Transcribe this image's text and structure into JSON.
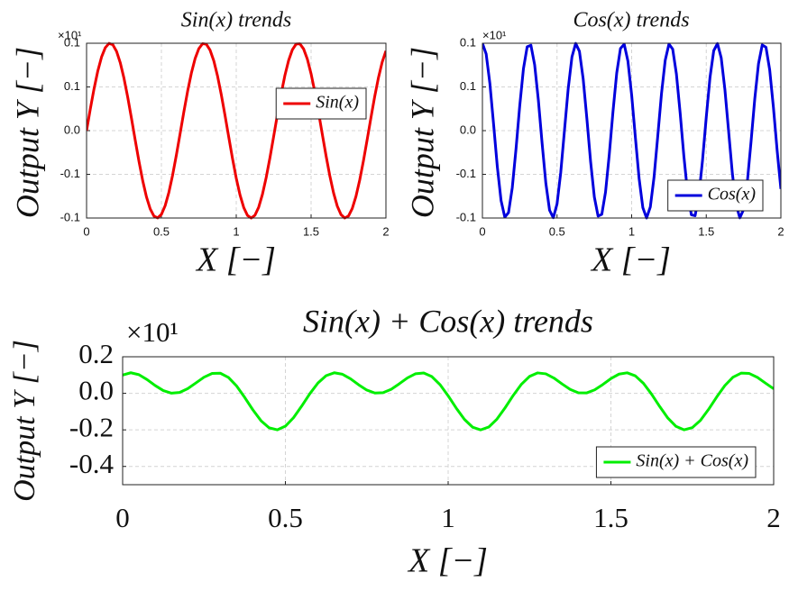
{
  "chart_data": [
    {
      "type": "line",
      "title": "Sin(x) trends",
      "x_label": "X [−]",
      "y_label": "Output Y [−]",
      "y_exponent": "×10¹",
      "x": [
        0,
        0.025,
        0.05,
        0.075,
        0.1,
        0.125,
        0.15,
        0.175,
        0.2,
        0.225,
        0.25,
        0.275,
        0.3,
        0.325,
        0.35,
        0.375,
        0.4,
        0.425,
        0.45,
        0.475,
        0.5,
        0.525,
        0.55,
        0.575,
        0.6,
        0.625,
        0.65,
        0.675,
        0.7,
        0.725,
        0.75,
        0.775,
        0.8,
        0.825,
        0.85,
        0.875,
        0.9,
        0.925,
        0.95,
        0.975,
        1,
        1.025,
        1.05,
        1.075,
        1.1,
        1.125,
        1.15,
        1.175,
        1.2,
        1.225,
        1.25,
        1.275,
        1.3,
        1.325,
        1.35,
        1.375,
        1.4,
        1.425,
        1.45,
        1.475,
        1.5,
        1.525,
        1.55,
        1.575,
        1.6,
        1.625,
        1.65,
        1.675,
        1.7,
        1.725,
        1.75,
        1.775,
        1.8,
        1.825,
        1.85,
        1.875,
        1.9,
        1.925,
        1.95,
        1.975,
        2
      ],
      "series": [
        {
          "name": "Sin(x)",
          "color": "#ee0000",
          "values": [
            0,
            0.0247,
            0.0479,
            0.0682,
            0.0842,
            0.0949,
            0.0998,
            0.0984,
            0.0909,
            0.0778,
            0.0599,
            0.0382,
            0.0141,
            -0.0108,
            -0.0351,
            -0.0572,
            -0.0757,
            -0.0895,
            -0.0978,
            -0.0999,
            -0.0959,
            -0.0859,
            -0.0706,
            -0.0508,
            -0.0279,
            -0.0033,
            0.0215,
            0.045,
            0.0657,
            0.0824,
            0.0938,
            0.0995,
            0.0989,
            0.0922,
            0.0799,
            0.0625,
            0.0412,
            0.0174,
            -0.0075,
            -0.032,
            -0.0544,
            -0.0735,
            -0.088,
            -0.097,
            -0.1,
            -0.0968,
            -0.0876,
            -0.0729,
            -0.0537,
            -0.0311,
            -0.0066,
            0.0183,
            0.042,
            0.0632,
            0.0804,
            0.0926,
            0.0991,
            0.0994,
            0.0935,
            0.0818,
            0.065,
            0.0442,
            0.0207,
            -0.0042,
            -0.0288,
            -0.0516,
            -0.0712,
            -0.0864,
            -0.0961,
            -0.1,
            -0.0976,
            -0.0891,
            -0.0751,
            -0.0564,
            -0.0343,
            -0.0099,
            0.015,
            0.039,
            0.0606,
            0.0784,
            0.0913
          ]
        }
      ],
      "xlim": [
        0,
        2
      ],
      "xticks": [
        0,
        0.5,
        1,
        1.5,
        2
      ],
      "ylim": [
        -0.1,
        0.1
      ],
      "yticks": [
        -0.1,
        {
          "value": -0.05,
          "label": "-0.1"
        },
        {
          "value": 0,
          "label": "0.0"
        },
        {
          "value": 0.05,
          "label": "0.1"
        },
        0.1
      ],
      "grid": true,
      "legend": "east"
    },
    {
      "type": "line",
      "title": "Cos(x) trends",
      "x_label": "X [−]",
      "y_label": "Output Y [−]",
      "y_exponent": "×10¹",
      "x": [
        0,
        0.025,
        0.05,
        0.075,
        0.1,
        0.125,
        0.15,
        0.175,
        0.2,
        0.225,
        0.25,
        0.275,
        0.3,
        0.325,
        0.35,
        0.375,
        0.4,
        0.425,
        0.45,
        0.475,
        0.5,
        0.525,
        0.55,
        0.575,
        0.6,
        0.625,
        0.65,
        0.675,
        0.7,
        0.725,
        0.75,
        0.775,
        0.8,
        0.825,
        0.85,
        0.875,
        0.9,
        0.925,
        0.95,
        0.975,
        1,
        1.025,
        1.05,
        1.075,
        1.1,
        1.125,
        1.15,
        1.175,
        1.2,
        1.225,
        1.25,
        1.275,
        1.3,
        1.325,
        1.35,
        1.375,
        1.4,
        1.425,
        1.45,
        1.475,
        1.5,
        1.525,
        1.55,
        1.575,
        1.6,
        1.625,
        1.65,
        1.675,
        1.7,
        1.725,
        1.75,
        1.775,
        1.8,
        1.825,
        1.85,
        1.875,
        1.9,
        1.925,
        1.95,
        1.975,
        2
      ],
      "series": [
        {
          "name": "Cos(x)",
          "color": "#0000dd",
          "values": [
            0.1,
            0.0878,
            0.054,
            0.0071,
            -0.0416,
            -0.0801,
            -0.099,
            -0.0937,
            -0.0654,
            -0.0211,
            0.0284,
            0.0709,
            0.096,
            0.0977,
            0.0754,
            0.0347,
            -0.0146,
            -0.0602,
            -0.0911,
            -0.0997,
            -0.0839,
            -0.0476,
            0.0005,
            0.0483,
            0.0844,
            0.0998,
            0.0908,
            0.0595,
            0.0137,
            -0.0356,
            -0.076,
            -0.0978,
            -0.0958,
            -0.0702,
            -0.0275,
            0.0219,
            0.066,
            0.094,
            0.0989,
            0.0796,
            0.0408,
            -0.0079,
            -0.0548,
            -0.0882,
            -0.1,
            -0.0874,
            -0.0533,
            -0.0062,
            0.0424,
            0.0806,
            0.0991,
            0.0933,
            0.0647,
            0.0202,
            -0.0292,
            -0.0715,
            -0.0963,
            -0.0974,
            -0.0748,
            -0.0338,
            0.0154,
            0.0609,
            0.0915,
            0.0997,
            0.0834,
            0.0468,
            -0.0013,
            -0.0492,
            -0.0849,
            -0.0998,
            -0.0904,
            -0.0589,
            -0.0128,
            0.0363,
            0.0765,
            0.098,
            0.0955,
            0.0696,
            0.0267,
            -0.0228,
            -0.0667
          ]
        }
      ],
      "xlim": [
        0,
        2
      ],
      "xticks": [
        0,
        0.5,
        1,
        1.5,
        2
      ],
      "ylim": [
        -0.1,
        0.1
      ],
      "yticks": [
        -0.1,
        {
          "value": -0.05,
          "label": "-0.1"
        },
        {
          "value": 0,
          "label": "0.0"
        },
        {
          "value": 0.05,
          "label": "0.1"
        },
        0.1
      ],
      "grid": true,
      "legend": "southeast"
    },
    {
      "type": "line",
      "title": "Sin(x) + Cos(x) trends",
      "x_label": "X [−]",
      "y_label": "Output Y [−]",
      "y_exponent": "×10¹",
      "x": [
        0,
        0.025,
        0.05,
        0.075,
        0.1,
        0.125,
        0.15,
        0.175,
        0.2,
        0.225,
        0.25,
        0.275,
        0.3,
        0.325,
        0.35,
        0.375,
        0.4,
        0.425,
        0.45,
        0.475,
        0.5,
        0.525,
        0.55,
        0.575,
        0.6,
        0.625,
        0.65,
        0.675,
        0.7,
        0.725,
        0.75,
        0.775,
        0.8,
        0.825,
        0.85,
        0.875,
        0.9,
        0.925,
        0.95,
        0.975,
        1,
        1.025,
        1.05,
        1.075,
        1.1,
        1.125,
        1.15,
        1.175,
        1.2,
        1.225,
        1.25,
        1.275,
        1.3,
        1.325,
        1.35,
        1.375,
        1.4,
        1.425,
        1.45,
        1.475,
        1.5,
        1.525,
        1.55,
        1.575,
        1.6,
        1.625,
        1.65,
        1.675,
        1.7,
        1.725,
        1.75,
        1.775,
        1.8,
        1.825,
        1.85,
        1.875,
        1.9,
        1.925,
        1.95,
        1.975,
        2
      ],
      "series": [
        {
          "name": "Sin(x) + Cos(x)",
          "color": "#00ee00",
          "values": [
            0.1,
            0.1125,
            0.102,
            0.0752,
            0.0425,
            0.0148,
            0.0008,
            0.0048,
            0.0256,
            0.0567,
            0.0882,
            0.109,
            0.1101,
            0.0868,
            0.0403,
            -0.0225,
            -0.0902,
            -0.1497,
            -0.1889,
            -0.1997,
            -0.1798,
            -0.1334,
            -0.0701,
            -0.0025,
            0.0565,
            0.0965,
            0.1123,
            0.1045,
            0.0794,
            0.0467,
            0.0178,
            0.0017,
            0.0032,
            0.0221,
            0.0523,
            0.0844,
            0.1072,
            0.1113,
            0.0914,
            0.0476,
            -0.0136,
            -0.0814,
            -0.1427,
            -0.1852,
            -0.2,
            -0.1842,
            -0.1409,
            -0.0791,
            -0.0112,
            0.0495,
            0.0925,
            0.1116,
            0.1067,
            0.0834,
            0.0512,
            0.0211,
            0.0028,
            0.002,
            0.0187,
            0.048,
            0.0805,
            0.1051,
            0.1121,
            0.0955,
            0.0546,
            -0.0048,
            -0.0725,
            -0.1356,
            -0.181,
            -0.1998,
            -0.1879,
            -0.148,
            -0.0879,
            -0.0202,
            0.0423,
            0.0881,
            0.1105,
            0.1086,
            0.0872,
            0.0555,
            0.0246
          ]
        }
      ],
      "xlim": [
        0,
        2
      ],
      "xticks": [
        0,
        0.5,
        1,
        1.5,
        2
      ],
      "ylim": [
        -0.5,
        0.2
      ],
      "yticks": [
        -0.4,
        -0.2,
        {
          "value": 0,
          "label": "0.0"
        },
        0.2
      ],
      "grid": true,
      "legend": "southeast"
    }
  ]
}
